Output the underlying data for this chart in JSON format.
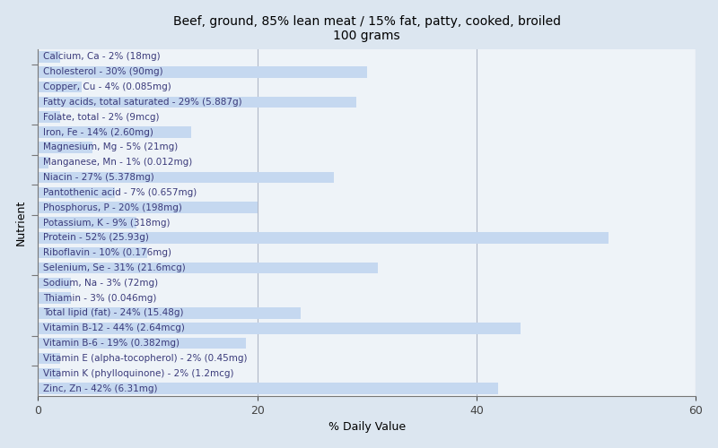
{
  "title": "Beef, ground, 85% lean meat / 15% fat, patty, cooked, broiled\n100 grams",
  "xlabel": "% Daily Value",
  "ylabel": "Nutrient",
  "xlim": [
    0,
    60
  ],
  "xticks": [
    0,
    20,
    40,
    60
  ],
  "background_color": "#dce6f0",
  "plot_background_color": "#eef3f8",
  "bar_color": "#c5d8f0",
  "bar_edge_color": "#c5d8f0",
  "text_color": "#3a3a7a",
  "nutrients": [
    {
      "label": "Calcium, Ca - 2% (18mg)",
      "value": 2
    },
    {
      "label": "Cholesterol - 30% (90mg)",
      "value": 30
    },
    {
      "label": "Copper, Cu - 4% (0.085mg)",
      "value": 4
    },
    {
      "label": "Fatty acids, total saturated - 29% (5.887g)",
      "value": 29
    },
    {
      "label": "Folate, total - 2% (9mcg)",
      "value": 2
    },
    {
      "label": "Iron, Fe - 14% (2.60mg)",
      "value": 14
    },
    {
      "label": "Magnesium, Mg - 5% (21mg)",
      "value": 5
    },
    {
      "label": "Manganese, Mn - 1% (0.012mg)",
      "value": 1
    },
    {
      "label": "Niacin - 27% (5.378mg)",
      "value": 27
    },
    {
      "label": "Pantothenic acid - 7% (0.657mg)",
      "value": 7
    },
    {
      "label": "Phosphorus, P - 20% (198mg)",
      "value": 20
    },
    {
      "label": "Potassium, K - 9% (318mg)",
      "value": 9
    },
    {
      "label": "Protein - 52% (25.93g)",
      "value": 52
    },
    {
      "label": "Riboflavin - 10% (0.176mg)",
      "value": 10
    },
    {
      "label": "Selenium, Se - 31% (21.6mcg)",
      "value": 31
    },
    {
      "label": "Sodium, Na - 3% (72mg)",
      "value": 3
    },
    {
      "label": "Thiamin - 3% (0.046mg)",
      "value": 3
    },
    {
      "label": "Total lipid (fat) - 24% (15.48g)",
      "value": 24
    },
    {
      "label": "Vitamin B-12 - 44% (2.64mcg)",
      "value": 44
    },
    {
      "label": "Vitamin B-6 - 19% (0.382mg)",
      "value": 19
    },
    {
      "label": "Vitamin E (alpha-tocopherol) - 2% (0.45mg)",
      "value": 2
    },
    {
      "label": "Vitamin K (phylloquinone) - 2% (1.2mcg)",
      "value": 2
    },
    {
      "label": "Zinc, Zn - 42% (6.31mg)",
      "value": 42
    }
  ],
  "group_tick_positions": [
    1.5,
    3.5,
    7.5,
    11.5,
    13.5,
    15.5,
    17.5,
    21.5
  ],
  "title_fontsize": 10,
  "axis_label_fontsize": 9,
  "tick_fontsize": 9,
  "bar_label_fontsize": 7.5
}
